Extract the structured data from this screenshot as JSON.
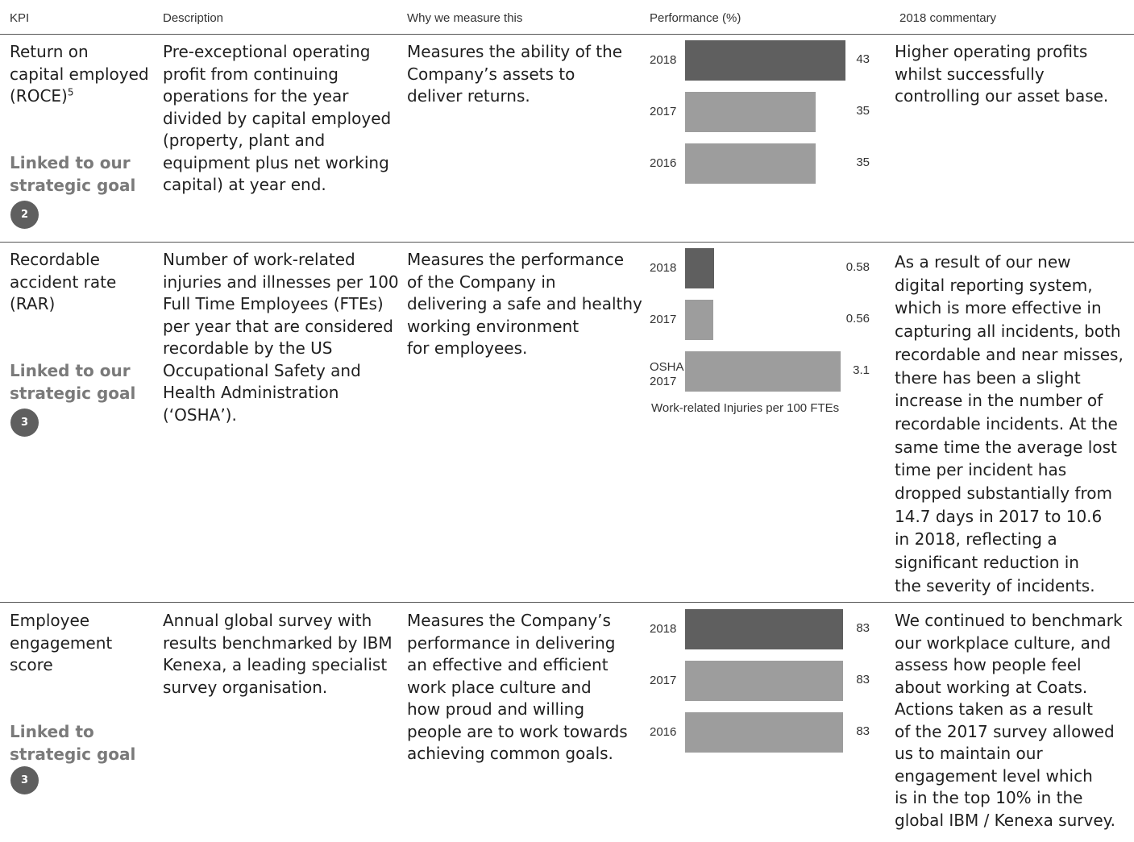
{
  "headers": {
    "kpi": "KPI",
    "description": "Description",
    "why": "Why we measure this",
    "performance": "Performance (%)",
    "commentary": "2018 commentary"
  },
  "colors": {
    "current_bar": "#5f5f5f",
    "prior_bar": "#9d9d9d",
    "rule": "#555555",
    "goal_text": "#7a7a7a"
  },
  "rows": [
    {
      "kpi": "Return on\ncapital employed\n(ROCE)",
      "kpi_footnote": "5",
      "goal_label": "Linked to our\nstrategic goal",
      "goal_number": "2",
      "description": "Pre-exceptional operating\nprofit from continuing\noperations for the year\ndivided by capital employed\n(property, plant and\nequipment plus net working\ncapital) at year end.",
      "why": "Measures the ability of the\nCompany’s assets to\ndeliver returns.",
      "commentary": "Higher operating profits\nwhilst successfully\ncontrolling our asset base."
    },
    {
      "kpi": "Recordable\naccident rate\n(RAR)",
      "goal_label": "Linked to our\nstrategic goal",
      "goal_number": "3",
      "description": "Number of work-related\ninjuries and illnesses per 100\nFull Time Employees (FTEs)\nper year that are considered\nrecordable by the US\nOccupational Safety and\nHealth Administration\n(‘OSHA’).",
      "why": "Measures the performance\nof the Company in\ndelivering a safe and healthy\nworking environment\nfor employees.",
      "chart_note": "Work-related Injuries per 100 FTEs",
      "commentary": "As a result of our new\ndigital reporting system,\nwhich is more effective in\ncapturing all incidents, both\nrecordable and near misses,\nthere has been a slight\nincrease in the number of\nrecordable incidents. At the\nsame time the average lost\ntime per incident has\ndropped substantially from\n14.7 days in 2017 to 10.6\nin 2018, reflecting a\nsignificant reduction in\nthe severity of incidents."
    },
    {
      "kpi": "Employee\nengagement\nscore",
      "goal_label": "Linked to\nstrategic goal",
      "goal_number": "3",
      "description": "Annual global survey with\nresults benchmarked by IBM\nKenexa, a leading specialist\nsurvey organisation.",
      "why": "Measures the Company’s\nperformance in delivering\nan effective and efficient\nwork place culture and\nhow proud and willing\npeople are to work towards\nachieving common goals.",
      "commentary": "We continued to benchmark\nour workplace culture, and\nassess how people feel\nabout working at Coats.\nActions taken as a result\nof the 2017 survey allowed\nus to maintain our\nengagement level which\nis in the top 10% in the\nglobal IBM / Kenexa survey."
    }
  ],
  "chart_data": [
    {
      "type": "bar",
      "orientation": "horizontal",
      "categories": [
        "2018",
        "2017",
        "2016"
      ],
      "values": [
        43,
        35,
        35
      ],
      "value_labels": [
        "43",
        "35",
        "35"
      ],
      "xlim": [
        0,
        43
      ]
    },
    {
      "type": "bar",
      "orientation": "horizontal",
      "categories": [
        "2018",
        "2017",
        "OSHA\n2017"
      ],
      "values": [
        0.58,
        0.56,
        3.1
      ],
      "value_labels": [
        "0.58",
        "0.56",
        "3.1"
      ],
      "xlim": [
        0,
        3.3
      ],
      "xlabel": "Work-related Injuries per 100 FTEs"
    },
    {
      "type": "bar",
      "orientation": "horizontal",
      "categories": [
        "2018",
        "2017",
        "2016"
      ],
      "values": [
        83,
        83,
        83
      ],
      "value_labels": [
        "83",
        "83",
        "83"
      ],
      "xlim": [
        0,
        83
      ]
    }
  ]
}
